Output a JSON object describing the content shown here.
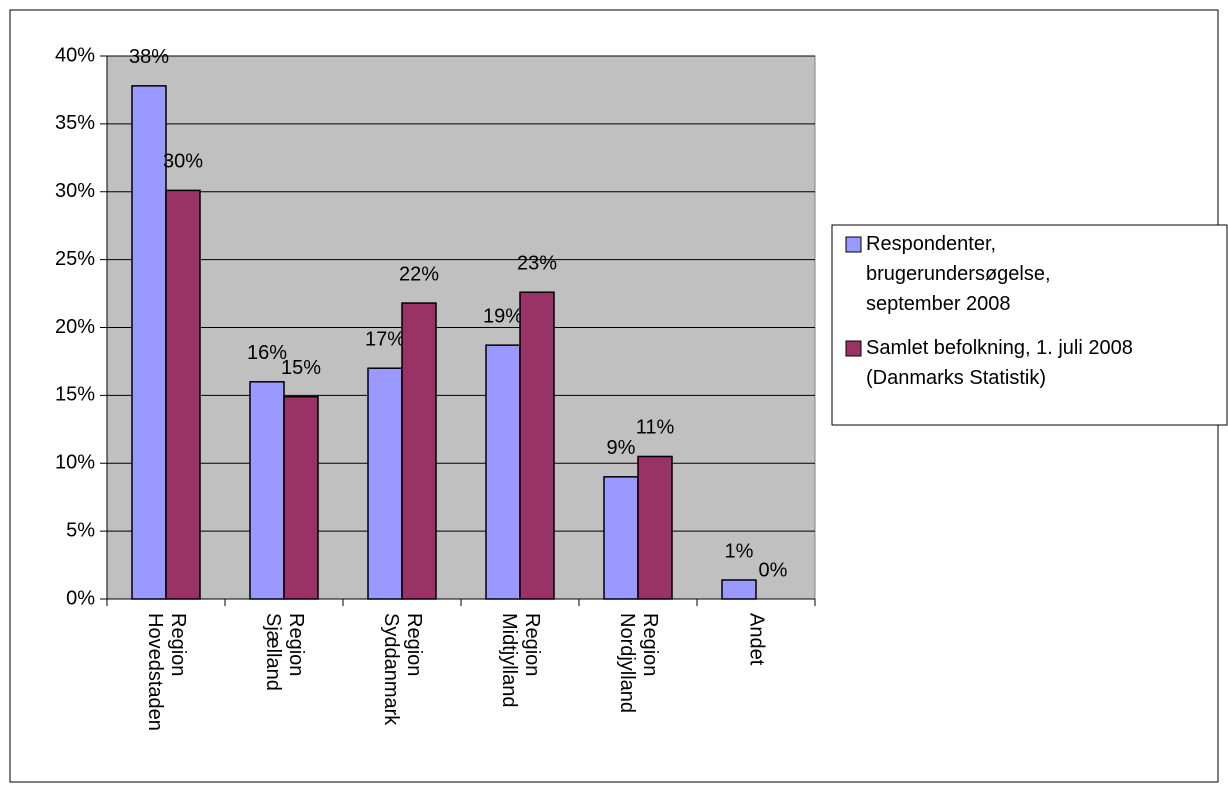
{
  "chart_data": {
    "type": "bar",
    "categories": [
      "Region\nHovedstaden",
      "Region\nSjælland",
      "Region\nSyddanmark",
      "Region\nMidtjylland",
      "Region\nNordjylland",
      "Andet"
    ],
    "series": [
      {
        "name": "Respondenter,\nbrugerundersøgelse,\nseptember 2008",
        "color": "#9999ff",
        "values": [
          37.8,
          16,
          17,
          18.7,
          9,
          1.4
        ],
        "value_labels": [
          "38%",
          "16%",
          "17%",
          "19%",
          "9%",
          "1%"
        ]
      },
      {
        "name": "Samlet befolkning, 1. juli 2008\n(Danmarks Statistik)",
        "color": "#993366",
        "values": [
          30.1,
          14.9,
          21.8,
          22.6,
          10.5,
          0
        ],
        "value_labels": [
          "30%",
          "15%",
          "22%",
          "23%",
          "11%",
          "0%"
        ]
      }
    ],
    "ylim": [
      0,
      40
    ],
    "yticks": [
      {
        "value": 0,
        "label": "0%"
      },
      {
        "value": 5,
        "label": "5%"
      },
      {
        "value": 10,
        "label": "10%"
      },
      {
        "value": 15,
        "label": "15%"
      },
      {
        "value": 20,
        "label": "20%"
      },
      {
        "value": 25,
        "label": "25%"
      },
      {
        "value": 30,
        "label": "30%"
      },
      {
        "value": 35,
        "label": "35%"
      },
      {
        "value": 40,
        "label": "40%"
      }
    ],
    "grid": true,
    "plot_background": "#c0c0c0",
    "legend": "right"
  }
}
